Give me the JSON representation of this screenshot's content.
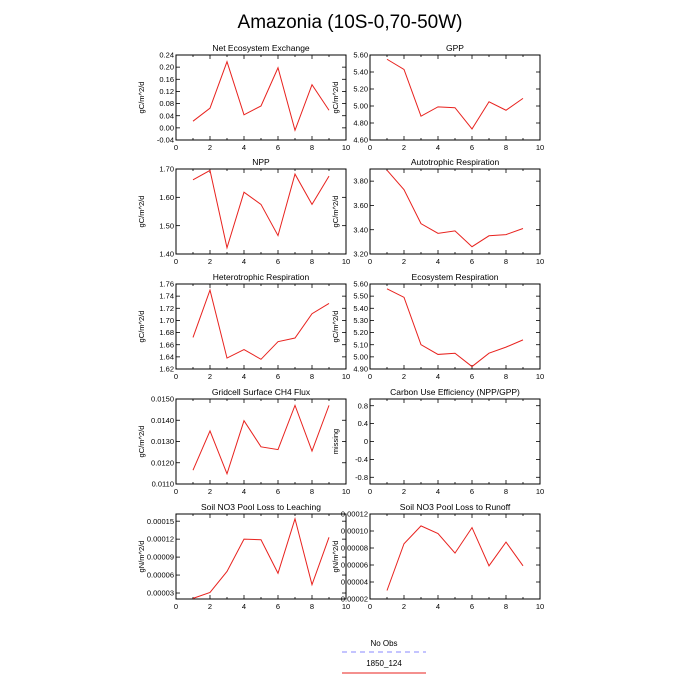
{
  "title": "Amazonia (10S-0,70-50W)",
  "legend": [
    {
      "label": "No Obs",
      "color": "#8888ff",
      "dash": true
    },
    {
      "label": "1850_124",
      "color": "#e8221e",
      "dash": false
    }
  ],
  "chart_data": [
    {
      "type": "line",
      "title": "Net Ecosystem Exchange",
      "ylabel": "gC/m^2/d",
      "xlim": [
        0,
        10
      ],
      "xticks": [
        0,
        2,
        4,
        6,
        8,
        10
      ],
      "ylim": [
        -0.04,
        0.24
      ],
      "yticks": [
        -0.04,
        0.0,
        0.04,
        0.08,
        0.12,
        0.16,
        0.2,
        0.24
      ],
      "yticklabels": [
        "-0.04",
        "0.00",
        "0.04",
        "0.08",
        "0.12",
        "0.16",
        "0.20",
        "0.24"
      ],
      "x": [
        1,
        2,
        3,
        4,
        5,
        6,
        7,
        8,
        9
      ],
      "y": [
        0.022,
        0.065,
        0.218,
        0.043,
        0.072,
        0.198,
        -0.008,
        0.142,
        0.058
      ]
    },
    {
      "type": "line",
      "title": "GPP",
      "ylabel": "gC/m^2/d",
      "xlim": [
        0,
        10
      ],
      "xticks": [
        0,
        2,
        4,
        6,
        8,
        10
      ],
      "ylim": [
        4.6,
        5.6
      ],
      "yticks": [
        4.6,
        4.8,
        5.0,
        5.2,
        5.4,
        5.6
      ],
      "yticklabels": [
        "4.60",
        "4.80",
        "5.00",
        "5.20",
        "5.40",
        "5.60"
      ],
      "x": [
        1,
        2,
        3,
        4,
        5,
        6,
        7,
        8,
        9
      ],
      "y": [
        5.55,
        5.43,
        4.88,
        4.99,
        4.98,
        4.73,
        5.05,
        4.95,
        5.09
      ]
    },
    {
      "type": "line",
      "title": "NPP",
      "ylabel": "gC/m^2/d",
      "xlim": [
        0,
        10
      ],
      "xticks": [
        0,
        2,
        4,
        6,
        8,
        10
      ],
      "ylim": [
        1.4,
        1.7
      ],
      "yticks": [
        1.4,
        1.5,
        1.6,
        1.7
      ],
      "yticklabels": [
        "1.40",
        "1.50",
        "1.60",
        "1.70"
      ],
      "x": [
        1,
        2,
        3,
        4,
        5,
        6,
        7,
        8,
        9
      ],
      "y": [
        1.662,
        1.695,
        1.422,
        1.618,
        1.575,
        1.465,
        1.682,
        1.575,
        1.675
      ]
    },
    {
      "type": "line",
      "title": "Autotrophic Respiration",
      "ylabel": "gC/m^2/d",
      "xlim": [
        0,
        10
      ],
      "xticks": [
        0,
        2,
        4,
        6,
        8,
        10
      ],
      "ylim": [
        3.2,
        3.9
      ],
      "yticks": [
        3.2,
        3.4,
        3.6,
        3.8
      ],
      "yticklabels": [
        "3.20",
        "3.40",
        "3.60",
        "3.80"
      ],
      "x": [
        1,
        2,
        3,
        4,
        5,
        6,
        7,
        8,
        9
      ],
      "y": [
        3.89,
        3.73,
        3.45,
        3.37,
        3.39,
        3.26,
        3.35,
        3.36,
        3.41
      ]
    },
    {
      "type": "line",
      "title": "Heterotrophic Respiration",
      "ylabel": "gC/m^2/d",
      "xlim": [
        0,
        10
      ],
      "xticks": [
        0,
        2,
        4,
        6,
        8,
        10
      ],
      "ylim": [
        1.62,
        1.76
      ],
      "yticks": [
        1.62,
        1.64,
        1.66,
        1.68,
        1.7,
        1.72,
        1.74,
        1.76
      ],
      "yticklabels": [
        "1.62",
        "1.64",
        "1.66",
        "1.68",
        "1.70",
        "1.72",
        "1.74",
        "1.76"
      ],
      "x": [
        1,
        2,
        3,
        4,
        5,
        6,
        7,
        8,
        9
      ],
      "y": [
        1.672,
        1.75,
        1.638,
        1.652,
        1.636,
        1.665,
        1.671,
        1.711,
        1.728
      ]
    },
    {
      "type": "line",
      "title": "Ecosystem Respiration",
      "ylabel": "gC/m^2/d",
      "xlim": [
        0,
        10
      ],
      "xticks": [
        0,
        2,
        4,
        6,
        8,
        10
      ],
      "ylim": [
        4.9,
        5.6
      ],
      "yticks": [
        4.9,
        5.0,
        5.1,
        5.2,
        5.3,
        5.4,
        5.5,
        5.6
      ],
      "yticklabels": [
        "4.90",
        "5.00",
        "5.10",
        "5.20",
        "5.30",
        "5.40",
        "5.50",
        "5.60"
      ],
      "x": [
        1,
        2,
        3,
        4,
        5,
        6,
        7,
        8,
        9
      ],
      "y": [
        5.56,
        5.49,
        5.1,
        5.02,
        5.03,
        4.92,
        5.03,
        5.08,
        5.14
      ]
    },
    {
      "type": "line",
      "title": "Gridcell Surface CH4 Flux",
      "ylabel": "gC/m^2/d",
      "xlim": [
        0,
        10
      ],
      "xticks": [
        0,
        2,
        4,
        6,
        8,
        10
      ],
      "ylim": [
        0.011,
        0.015
      ],
      "yticks": [
        0.011,
        0.012,
        0.013,
        0.014,
        0.015
      ],
      "yticklabels": [
        "0.0110",
        "0.0120",
        "0.0130",
        "0.0140",
        "0.0150"
      ],
      "x": [
        1,
        2,
        3,
        4,
        5,
        6,
        7,
        8,
        9
      ],
      "y": [
        0.01165,
        0.0135,
        0.01148,
        0.01398,
        0.01275,
        0.01262,
        0.0147,
        0.01255,
        0.0147
      ]
    },
    {
      "type": "line",
      "title": "Carbon Use Efficiency (NPP/GPP)",
      "ylabel": "missing",
      "xlim": [
        0,
        10
      ],
      "xticks": [
        0,
        2,
        4,
        6,
        8,
        10
      ],
      "ylim": [
        -0.95,
        0.95
      ],
      "yticks": [
        -0.8,
        -0.4,
        0.0,
        0.4,
        0.8
      ],
      "yticklabels": [
        "-0.8",
        "-0.4",
        "0",
        "0.4",
        "0.8"
      ],
      "x": [],
      "y": []
    },
    {
      "type": "line",
      "title": "Soil NO3 Pool Loss to Leaching",
      "ylabel": "gN/m^2/d",
      "xlim": [
        0,
        10
      ],
      "xticks": [
        0,
        2,
        4,
        6,
        8,
        10
      ],
      "ylim": [
        2e-05,
        0.000162
      ],
      "yticks": [
        3e-05,
        6e-05,
        9e-05,
        0.00012,
        0.00015
      ],
      "yticklabels": [
        "0.00003",
        "0.00006",
        "0.00009",
        "0.00012",
        "0.00015"
      ],
      "x": [
        1,
        2,
        3,
        4,
        5,
        6,
        7,
        8,
        9
      ],
      "y": [
        2.1e-05,
        3.1e-05,
        6.6e-05,
        0.00012,
        0.000119,
        6.3e-05,
        0.000154,
        4.4e-05,
        0.000123
      ]
    },
    {
      "type": "line",
      "title": "Soil NO3 Pool Loss to Runoff",
      "ylabel": "gN/m^2/d",
      "xlim": [
        0,
        10
      ],
      "xticks": [
        0,
        2,
        4,
        6,
        8,
        10
      ],
      "ylim": [
        2e-05,
        0.00012
      ],
      "yticks": [
        2e-05,
        4e-05,
        6e-05,
        8e-05,
        0.0001,
        0.00012
      ],
      "yticklabels": [
        "0.00002",
        "0.00004",
        "0.00006",
        "0.00008",
        "0.00010",
        "0.00012"
      ],
      "x": [
        1,
        2,
        3,
        4,
        5,
        6,
        7,
        8,
        9
      ],
      "y": [
        3e-05,
        8.5e-05,
        0.000106,
        9.7e-05,
        7.4e-05,
        0.000104,
        5.9e-05,
        8.7e-05,
        5.9e-05
      ]
    }
  ]
}
